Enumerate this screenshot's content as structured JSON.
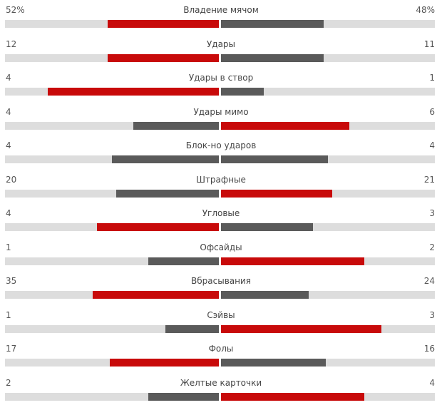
{
  "stats": [
    {
      "name": "Владение мячом",
      "left": "52%",
      "right": "48%",
      "left_fill": 0.52,
      "right_fill": 0.48,
      "leader": "left"
    },
    {
      "name": "Удары",
      "left": "12",
      "right": "11",
      "left_fill": 0.52,
      "right_fill": 0.48,
      "leader": "left"
    },
    {
      "name": "Удары в створ",
      "left": "4",
      "right": "1",
      "left_fill": 0.8,
      "right_fill": 0.2,
      "leader": "left"
    },
    {
      "name": "Удары мимо",
      "left": "4",
      "right": "6",
      "left_fill": 0.4,
      "right_fill": 0.6,
      "leader": "right"
    },
    {
      "name": "Блок-но ударов",
      "left": "4",
      "right": "4",
      "left_fill": 0.5,
      "right_fill": 0.5,
      "leader": "none"
    },
    {
      "name": "Штрафные",
      "left": "20",
      "right": "21",
      "left_fill": 0.48,
      "right_fill": 0.52,
      "leader": "right"
    },
    {
      "name": "Угловые",
      "left": "4",
      "right": "3",
      "left_fill": 0.57,
      "right_fill": 0.43,
      "leader": "left"
    },
    {
      "name": "Офсайды",
      "left": "1",
      "right": "2",
      "left_fill": 0.33,
      "right_fill": 0.67,
      "leader": "right"
    },
    {
      "name": "Вбрасывания",
      "left": "35",
      "right": "24",
      "left_fill": 0.59,
      "right_fill": 0.41,
      "leader": "left"
    },
    {
      "name": "Сэйвы",
      "left": "1",
      "right": "3",
      "left_fill": 0.25,
      "right_fill": 0.75,
      "leader": "right"
    },
    {
      "name": "Фолы",
      "left": "17",
      "right": "16",
      "left_fill": 0.51,
      "right_fill": 0.49,
      "leader": "left"
    },
    {
      "name": "Желтые карточки",
      "left": "2",
      "right": "4",
      "left_fill": 0.33,
      "right_fill": 0.67,
      "leader": "right"
    }
  ],
  "colors": {
    "leader": "#c80a0a",
    "other": "#5a5a5a",
    "track": "#dddddd"
  }
}
